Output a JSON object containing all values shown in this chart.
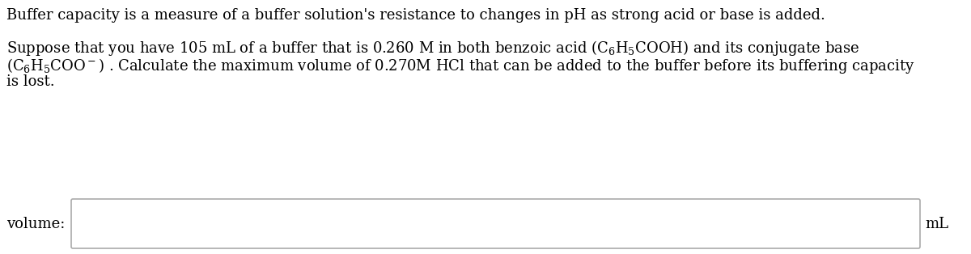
{
  "line1": "Buffer capacity is a measure of a buffer solution's resistance to changes in pH as strong acid or base is added.",
  "line2_text": "Suppose that you have 105 mL of a buffer that is 0.260 M in both benzoic acid $(C_6H_5COOH)$ and its conjugate base",
  "line3_text": "$(C_6H_5COO^-)$ . Calculate the maximum volume of 0.270M HCl that can be added to the buffer before its buffering capacity",
  "line4": "is lost.",
  "input_label": "volume:",
  "input_unit": "mL",
  "bg_color": "#ffffff",
  "text_color": "#000000",
  "font_size": 13.0,
  "box_border_color": "#aaaaaa",
  "box_fill_color": "#ffffff",
  "fig_width": 12.0,
  "fig_height": 3.14,
  "dpi": 100
}
